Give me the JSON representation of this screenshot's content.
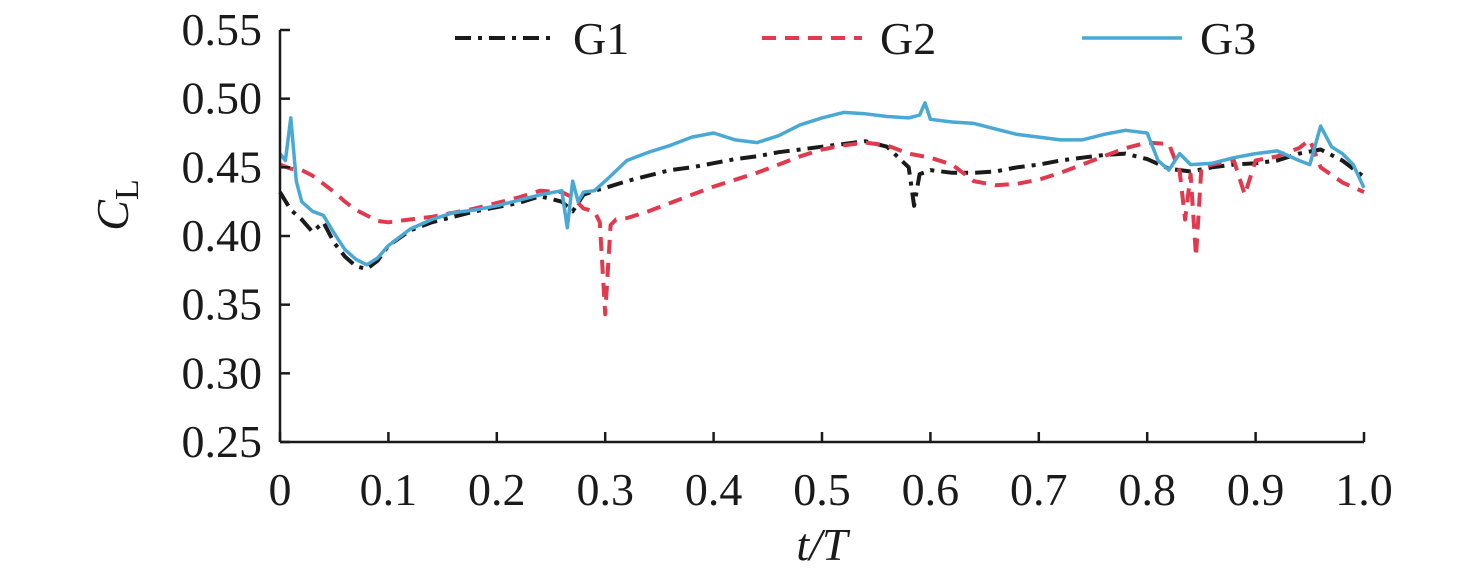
{
  "chart_data": {
    "type": "line",
    "xlabel": "t/T",
    "ylabel": {
      "main": "C",
      "sub": "L"
    },
    "xlim": [
      0,
      1.0
    ],
    "ylim": [
      0.25,
      0.55
    ],
    "x_ticks": [
      "0",
      "0.1",
      "0.2",
      "0.3",
      "0.4",
      "0.5",
      "0.6",
      "0.7",
      "0.8",
      "0.9",
      "1.0"
    ],
    "y_ticks": [
      "0.25",
      "0.30",
      "0.35",
      "0.40",
      "0.45",
      "0.50",
      "0.55"
    ],
    "grid": false,
    "legend_position": "top",
    "series": [
      {
        "name": "G1",
        "color": "#1a1a1a",
        "style": "dash-dot",
        "x": [
          0,
          0.01,
          0.02,
          0.03,
          0.04,
          0.05,
          0.06,
          0.07,
          0.08,
          0.09,
          0.1,
          0.12,
          0.14,
          0.16,
          0.18,
          0.2,
          0.22,
          0.24,
          0.26,
          0.27,
          0.28,
          0.29,
          0.3,
          0.32,
          0.34,
          0.36,
          0.38,
          0.4,
          0.42,
          0.44,
          0.46,
          0.48,
          0.5,
          0.52,
          0.54,
          0.56,
          0.58,
          0.585,
          0.59,
          0.6,
          0.62,
          0.64,
          0.66,
          0.68,
          0.7,
          0.72,
          0.74,
          0.76,
          0.78,
          0.8,
          0.82,
          0.84,
          0.86,
          0.88,
          0.9,
          0.92,
          0.94,
          0.96,
          0.98,
          1.0
        ],
        "y": [
          0.432,
          0.419,
          0.412,
          0.403,
          0.41,
          0.395,
          0.385,
          0.378,
          0.376,
          0.382,
          0.393,
          0.404,
          0.41,
          0.414,
          0.418,
          0.421,
          0.424,
          0.429,
          0.425,
          0.418,
          0.43,
          0.433,
          0.435,
          0.44,
          0.444,
          0.448,
          0.45,
          0.453,
          0.456,
          0.458,
          0.461,
          0.463,
          0.465,
          0.467,
          0.469,
          0.465,
          0.45,
          0.422,
          0.445,
          0.448,
          0.446,
          0.446,
          0.447,
          0.45,
          0.452,
          0.455,
          0.457,
          0.459,
          0.46,
          0.456,
          0.449,
          0.447,
          0.45,
          0.452,
          0.453,
          0.455,
          0.46,
          0.463,
          0.455,
          0.443
        ]
      },
      {
        "name": "G2",
        "color": "#e03a4e",
        "style": "dashed",
        "x": [
          0,
          0.01,
          0.02,
          0.03,
          0.04,
          0.05,
          0.06,
          0.07,
          0.08,
          0.09,
          0.1,
          0.12,
          0.14,
          0.16,
          0.18,
          0.2,
          0.22,
          0.24,
          0.26,
          0.27,
          0.28,
          0.29,
          0.295,
          0.3,
          0.305,
          0.31,
          0.32,
          0.34,
          0.36,
          0.38,
          0.4,
          0.42,
          0.44,
          0.46,
          0.48,
          0.5,
          0.52,
          0.54,
          0.56,
          0.58,
          0.6,
          0.62,
          0.64,
          0.66,
          0.68,
          0.7,
          0.72,
          0.74,
          0.76,
          0.78,
          0.8,
          0.82,
          0.83,
          0.835,
          0.84,
          0.845,
          0.85,
          0.86,
          0.88,
          0.89,
          0.9,
          0.92,
          0.94,
          0.95,
          0.96,
          0.98,
          1.0
        ],
        "y": [
          0.452,
          0.449,
          0.448,
          0.444,
          0.438,
          0.432,
          0.425,
          0.419,
          0.415,
          0.411,
          0.41,
          0.412,
          0.414,
          0.417,
          0.42,
          0.424,
          0.428,
          0.433,
          0.432,
          0.428,
          0.42,
          0.418,
          0.41,
          0.343,
          0.408,
          0.412,
          0.413,
          0.418,
          0.424,
          0.43,
          0.436,
          0.441,
          0.446,
          0.452,
          0.458,
          0.463,
          0.466,
          0.468,
          0.466,
          0.46,
          0.457,
          0.452,
          0.44,
          0.437,
          0.438,
          0.441,
          0.446,
          0.452,
          0.458,
          0.464,
          0.468,
          0.467,
          0.447,
          0.412,
          0.445,
          0.385,
          0.45,
          0.452,
          0.455,
          0.43,
          0.455,
          0.458,
          0.464,
          0.47,
          0.45,
          0.439,
          0.432
        ]
      },
      {
        "name": "G3",
        "color": "#4aa8d4",
        "style": "solid",
        "x": [
          0,
          0.005,
          0.01,
          0.015,
          0.02,
          0.03,
          0.04,
          0.05,
          0.06,
          0.07,
          0.08,
          0.09,
          0.1,
          0.12,
          0.14,
          0.16,
          0.18,
          0.2,
          0.22,
          0.24,
          0.26,
          0.265,
          0.27,
          0.275,
          0.28,
          0.29,
          0.3,
          0.32,
          0.34,
          0.36,
          0.38,
          0.4,
          0.42,
          0.44,
          0.46,
          0.48,
          0.5,
          0.52,
          0.54,
          0.56,
          0.58,
          0.59,
          0.595,
          0.6,
          0.62,
          0.64,
          0.66,
          0.68,
          0.7,
          0.72,
          0.74,
          0.76,
          0.78,
          0.8,
          0.81,
          0.82,
          0.83,
          0.84,
          0.86,
          0.88,
          0.9,
          0.92,
          0.94,
          0.95,
          0.96,
          0.97,
          0.98,
          0.99,
          1.0
        ],
        "y": [
          0.46,
          0.455,
          0.486,
          0.44,
          0.425,
          0.418,
          0.415,
          0.402,
          0.39,
          0.383,
          0.379,
          0.384,
          0.393,
          0.405,
          0.412,
          0.417,
          0.419,
          0.422,
          0.426,
          0.43,
          0.433,
          0.406,
          0.44,
          0.425,
          0.432,
          0.433,
          0.44,
          0.455,
          0.461,
          0.466,
          0.472,
          0.475,
          0.47,
          0.468,
          0.473,
          0.481,
          0.486,
          0.49,
          0.489,
          0.487,
          0.486,
          0.488,
          0.497,
          0.485,
          0.483,
          0.482,
          0.478,
          0.474,
          0.472,
          0.47,
          0.47,
          0.474,
          0.477,
          0.475,
          0.455,
          0.448,
          0.46,
          0.452,
          0.453,
          0.457,
          0.46,
          0.462,
          0.455,
          0.452,
          0.48,
          0.465,
          0.46,
          0.452,
          0.435
        ]
      }
    ]
  }
}
